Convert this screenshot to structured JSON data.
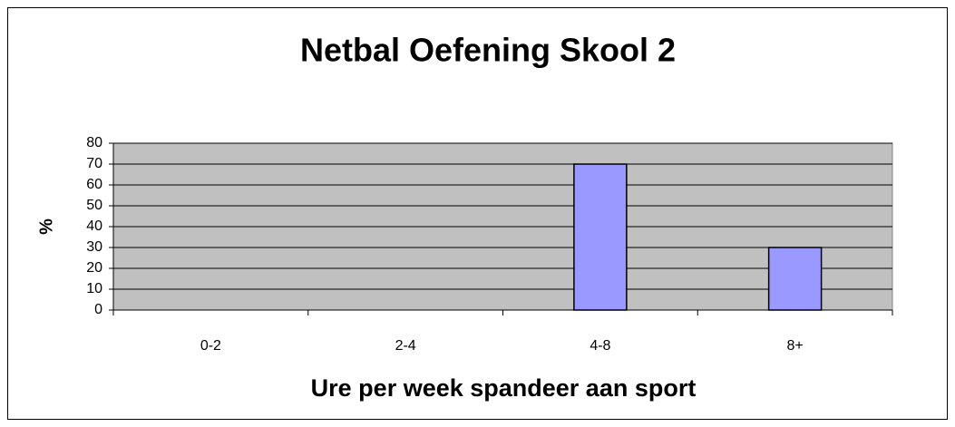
{
  "chart_data": {
    "type": "bar",
    "title": "Netbal Oefening Skool 2",
    "x_label": "Ure per week spandeer aan sport",
    "y_label": "%",
    "categories": [
      "0-2",
      "2-4",
      "4-8",
      "8+"
    ],
    "values": [
      0,
      0,
      70,
      30
    ],
    "color": "#9999ff",
    "plot_background": "#c0c0c0",
    "ylim": [
      0,
      80
    ],
    "yticks": [
      0,
      10,
      20,
      30,
      40,
      50,
      60,
      70,
      80
    ],
    "grid": true
  }
}
